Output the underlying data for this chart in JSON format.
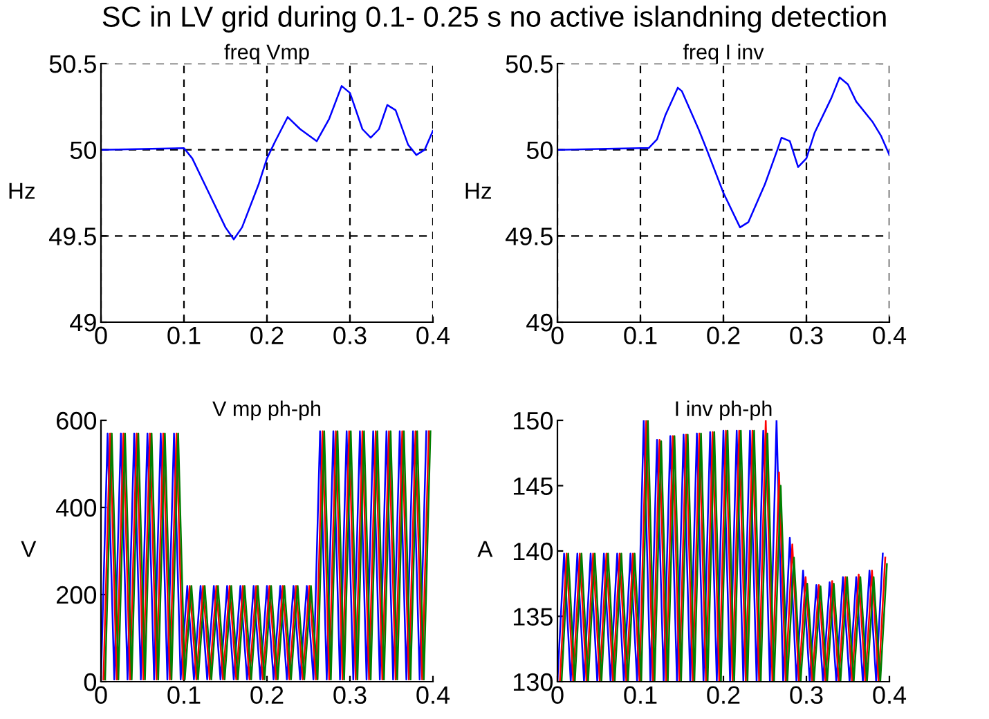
{
  "chart_data": [
    {
      "type": "line",
      "title": "freq Vmp",
      "ylabel": "Hz",
      "xlim": [
        0,
        0.4
      ],
      "xticks": [
        0,
        0.1,
        0.2,
        0.3,
        0.4
      ],
      "ylim": [
        49,
        50.5
      ],
      "yticks": [
        49,
        49.5,
        50,
        50.5
      ],
      "grid": true,
      "line_style": "solid",
      "marker": "none",
      "series": [
        {
          "color": "#0000ff",
          "x": [
            0,
            0.1,
            0.11,
            0.13,
            0.15,
            0.16,
            0.17,
            0.19,
            0.2,
            0.21,
            0.225,
            0.24,
            0.26,
            0.275,
            0.29,
            0.3,
            0.315,
            0.325,
            0.335,
            0.345,
            0.355,
            0.37,
            0.38,
            0.39,
            0.4
          ],
          "values": [
            50,
            50.01,
            49.95,
            49.75,
            49.55,
            49.48,
            49.55,
            49.8,
            49.95,
            50.05,
            50.19,
            50.12,
            50.05,
            50.18,
            50.37,
            50.33,
            50.12,
            50.07,
            50.12,
            50.26,
            50.23,
            50.03,
            49.97,
            50,
            50.11
          ]
        }
      ]
    },
    {
      "type": "line",
      "title": "freq I inv",
      "ylabel": "Hz",
      "xlim": [
        0,
        0.4
      ],
      "xticks": [
        0,
        0.1,
        0.2,
        0.3,
        0.4
      ],
      "ylim": [
        49,
        50.5
      ],
      "yticks": [
        49,
        49.5,
        50,
        50.5
      ],
      "grid": true,
      "line_style": "solid",
      "marker": "none",
      "series": [
        {
          "color": "#0000ff",
          "x": [
            0,
            0.1,
            0.11,
            0.12,
            0.13,
            0.145,
            0.15,
            0.17,
            0.18,
            0.2,
            0.22,
            0.23,
            0.25,
            0.265,
            0.27,
            0.28,
            0.29,
            0.3,
            0.31,
            0.33,
            0.34,
            0.35,
            0.36,
            0.38,
            0.39,
            0.4
          ],
          "values": [
            50,
            50.01,
            50.01,
            50.06,
            50.2,
            50.36,
            50.34,
            50.12,
            50,
            49.75,
            49.55,
            49.58,
            49.8,
            50,
            50.07,
            50.05,
            49.9,
            49.95,
            50.1,
            50.3,
            50.42,
            50.38,
            50.28,
            50.16,
            50.08,
            49.97
          ]
        }
      ]
    },
    {
      "type": "line",
      "title": "V mp ph-ph",
      "ylabel": "V",
      "xlim": [
        0,
        0.4
      ],
      "xticks": [
        0,
        0.1,
        0.2,
        0.3,
        0.4
      ],
      "ylim": [
        0,
        600
      ],
      "yticks": [
        0,
        200,
        400,
        600
      ],
      "grid": false,
      "line_style": "solid",
      "marker": "none",
      "series": [
        {
          "color": "#0000ff",
          "x": [
            0,
            0.008,
            0.016,
            0.024,
            0.032,
            0.04,
            0.048,
            0.056,
            0.064,
            0.072,
            0.08,
            0.088,
            0.096,
            0.104,
            0.112,
            0.12,
            0.128,
            0.136,
            0.144,
            0.152,
            0.16,
            0.168,
            0.176,
            0.184,
            0.192,
            0.2,
            0.208,
            0.216,
            0.224,
            0.232,
            0.24,
            0.248,
            0.256,
            0.264,
            0.272,
            0.28,
            0.288,
            0.296,
            0.304,
            0.312,
            0.32,
            0.328,
            0.336,
            0.344,
            0.352,
            0.36,
            0.368,
            0.376,
            0.384,
            0.392
          ],
          "values": [
            5,
            570,
            5,
            570,
            5,
            570,
            5,
            570,
            5,
            570,
            5,
            570,
            5,
            220,
            5,
            220,
            5,
            220,
            5,
            220,
            5,
            220,
            5,
            220,
            5,
            220,
            5,
            220,
            5,
            220,
            5,
            220,
            5,
            575,
            5,
            575,
            5,
            575,
            5,
            575,
            5,
            575,
            5,
            575,
            5,
            575,
            5,
            575,
            5,
            575
          ]
        },
        {
          "color": "#ff0000",
          "x": [
            0.003,
            0.011,
            0.019,
            0.027,
            0.035,
            0.043,
            0.051,
            0.059,
            0.067,
            0.075,
            0.083,
            0.091,
            0.099,
            0.107,
            0.115,
            0.123,
            0.131,
            0.139,
            0.147,
            0.155,
            0.163,
            0.171,
            0.179,
            0.187,
            0.195,
            0.203,
            0.211,
            0.219,
            0.227,
            0.235,
            0.243,
            0.251,
            0.259,
            0.267,
            0.275,
            0.283,
            0.291,
            0.299,
            0.307,
            0.315,
            0.323,
            0.331,
            0.339,
            0.347,
            0.355,
            0.363,
            0.371,
            0.379,
            0.387,
            0.395
          ],
          "values": [
            5,
            570,
            5,
            570,
            5,
            570,
            5,
            570,
            5,
            570,
            5,
            570,
            5,
            220,
            5,
            220,
            5,
            220,
            5,
            220,
            5,
            220,
            5,
            220,
            5,
            220,
            5,
            220,
            5,
            220,
            5,
            220,
            5,
            575,
            5,
            575,
            5,
            575,
            5,
            575,
            5,
            575,
            5,
            575,
            5,
            575,
            5,
            575,
            5,
            575
          ]
        },
        {
          "color": "#008000",
          "x": [
            0.005,
            0.013,
            0.021,
            0.029,
            0.037,
            0.045,
            0.053,
            0.061,
            0.069,
            0.077,
            0.085,
            0.093,
            0.101,
            0.109,
            0.117,
            0.125,
            0.133,
            0.141,
            0.149,
            0.157,
            0.165,
            0.173,
            0.181,
            0.189,
            0.197,
            0.205,
            0.213,
            0.221,
            0.229,
            0.237,
            0.245,
            0.253,
            0.261,
            0.269,
            0.277,
            0.285,
            0.293,
            0.301,
            0.309,
            0.317,
            0.325,
            0.333,
            0.341,
            0.349,
            0.357,
            0.365,
            0.373,
            0.381,
            0.389,
            0.397
          ],
          "values": [
            5,
            570,
            5,
            570,
            5,
            570,
            5,
            570,
            5,
            570,
            5,
            570,
            5,
            220,
            5,
            220,
            5,
            220,
            5,
            220,
            5,
            220,
            5,
            220,
            5,
            220,
            5,
            220,
            5,
            220,
            5,
            220,
            5,
            575,
            5,
            575,
            5,
            575,
            5,
            575,
            5,
            575,
            5,
            575,
            5,
            575,
            5,
            575,
            5,
            575
          ]
        }
      ]
    },
    {
      "type": "line",
      "title": "I inv ph-ph",
      "ylabel": "A",
      "xlim": [
        0,
        0.4
      ],
      "xticks": [
        0,
        0.1,
        0.2,
        0.3,
        0.4
      ],
      "ylim": [
        130,
        150
      ],
      "yticks": [
        130,
        135,
        140,
        145,
        150
      ],
      "grid": false,
      "line_style": "solid",
      "marker": "none",
      "series": [
        {
          "color": "#0000ff",
          "x": [
            0,
            0.008,
            0.016,
            0.024,
            0.032,
            0.04,
            0.048,
            0.056,
            0.064,
            0.072,
            0.08,
            0.088,
            0.096,
            0.104,
            0.112,
            0.12,
            0.128,
            0.136,
            0.144,
            0.152,
            0.16,
            0.168,
            0.176,
            0.184,
            0.192,
            0.2,
            0.208,
            0.216,
            0.224,
            0.232,
            0.24,
            0.248,
            0.256,
            0.264,
            0.272,
            0.28,
            0.288,
            0.296,
            0.304,
            0.312,
            0.32,
            0.328,
            0.336,
            0.344,
            0.352,
            0.36,
            0.368,
            0.376,
            0.384,
            0.392
          ],
          "values": [
            130,
            139.8,
            130,
            139.8,
            130,
            139.8,
            130,
            139.8,
            130,
            139.8,
            130,
            139.8,
            130,
            150,
            130,
            148.5,
            130,
            148.8,
            130,
            148.9,
            130,
            149,
            130,
            149.1,
            130,
            149.2,
            130,
            149.2,
            130,
            149.2,
            130,
            149.2,
            130,
            150,
            130,
            141,
            130,
            138.5,
            130,
            137.4,
            130,
            137.6,
            130,
            138,
            130,
            138,
            130,
            138.5,
            130,
            139.8
          ]
        },
        {
          "color": "#ff0000",
          "x": [
            0.003,
            0.011,
            0.019,
            0.027,
            0.035,
            0.043,
            0.051,
            0.059,
            0.067,
            0.075,
            0.083,
            0.091,
            0.099,
            0.107,
            0.115,
            0.123,
            0.131,
            0.139,
            0.147,
            0.155,
            0.163,
            0.171,
            0.179,
            0.187,
            0.195,
            0.203,
            0.211,
            0.219,
            0.227,
            0.235,
            0.243,
            0.251,
            0.259,
            0.267,
            0.275,
            0.283,
            0.291,
            0.299,
            0.307,
            0.315,
            0.323,
            0.331,
            0.339,
            0.347,
            0.355,
            0.363,
            0.371,
            0.379,
            0.387,
            0.395
          ],
          "values": [
            130,
            139.8,
            130,
            139.8,
            130,
            139.8,
            130,
            139.8,
            130,
            139.8,
            130,
            139.8,
            130,
            150,
            130,
            148.5,
            130,
            148.8,
            130,
            148.9,
            130,
            149,
            130,
            149.1,
            130,
            149.2,
            130,
            149.2,
            130,
            149.2,
            130,
            150,
            130,
            146,
            130,
            140.5,
            130,
            138,
            130,
            137.4,
            130,
            137.7,
            130,
            138,
            130,
            138.2,
            130,
            138.5,
            130,
            139.5
          ]
        },
        {
          "color": "#008000",
          "x": [
            0.005,
            0.013,
            0.021,
            0.029,
            0.037,
            0.045,
            0.053,
            0.061,
            0.069,
            0.077,
            0.085,
            0.093,
            0.101,
            0.109,
            0.117,
            0.125,
            0.133,
            0.141,
            0.149,
            0.157,
            0.165,
            0.173,
            0.181,
            0.189,
            0.197,
            0.205,
            0.213,
            0.221,
            0.229,
            0.237,
            0.245,
            0.253,
            0.261,
            0.269,
            0.277,
            0.285,
            0.293,
            0.301,
            0.309,
            0.317,
            0.325,
            0.333,
            0.341,
            0.349,
            0.357,
            0.365,
            0.373,
            0.381,
            0.389,
            0.397
          ],
          "values": [
            130,
            139.8,
            130,
            139.8,
            130,
            139.8,
            130,
            139.8,
            130,
            139.8,
            130,
            139.8,
            130,
            150,
            130,
            148.4,
            130,
            148.8,
            130,
            148.9,
            130,
            149,
            130,
            149.1,
            130,
            149.2,
            130,
            149.2,
            130,
            149.2,
            130,
            149,
            130,
            145,
            130,
            139.5,
            130,
            137.5,
            130,
            137.3,
            130,
            137.5,
            130,
            138,
            130,
            138,
            130,
            138,
            130,
            139
          ]
        }
      ]
    },
    {
      "type": "other",
      "title": "SC in LV grid during 0.1- 0.25 s no active islandning detection"
    }
  ]
}
